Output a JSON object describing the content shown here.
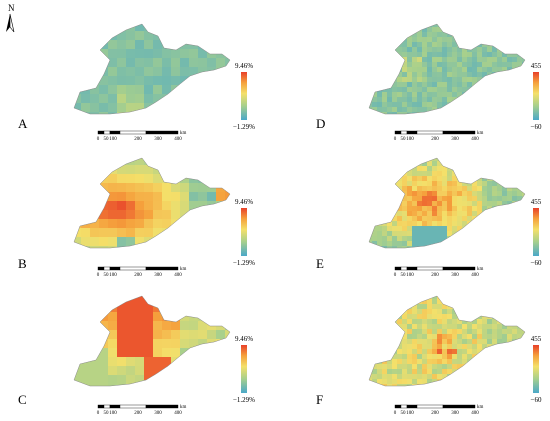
{
  "north_label": "N",
  "panels": [
    {
      "label": "A",
      "legend_max": "9.46%",
      "legend_min": "−1.29%",
      "variant": "pct_low"
    },
    {
      "label": "B",
      "legend_max": "9.46%",
      "legend_min": "−1.29%",
      "variant": "pct_high_west"
    },
    {
      "label": "C",
      "legend_max": "9.46%",
      "legend_min": "−1.29%",
      "variant": "pct_high_north"
    },
    {
      "label": "D",
      "legend_max": "455",
      "legend_min": "−60",
      "variant": "abs_low"
    },
    {
      "label": "E",
      "legend_max": "455",
      "legend_min": "−60",
      "variant": "abs_high_center"
    },
    {
      "label": "F",
      "legend_max": "455",
      "legend_min": "−60",
      "variant": "abs_mixed"
    }
  ],
  "scale_bar": {
    "ticks": [
      "0",
      "50",
      "100",
      "200",
      "300",
      "400"
    ],
    "unit": "km"
  },
  "colors": {
    "ramp": [
      "#4aa8c8",
      "#a8d08c",
      "#f4e06a",
      "#f5a03c",
      "#e8402a"
    ]
  }
}
